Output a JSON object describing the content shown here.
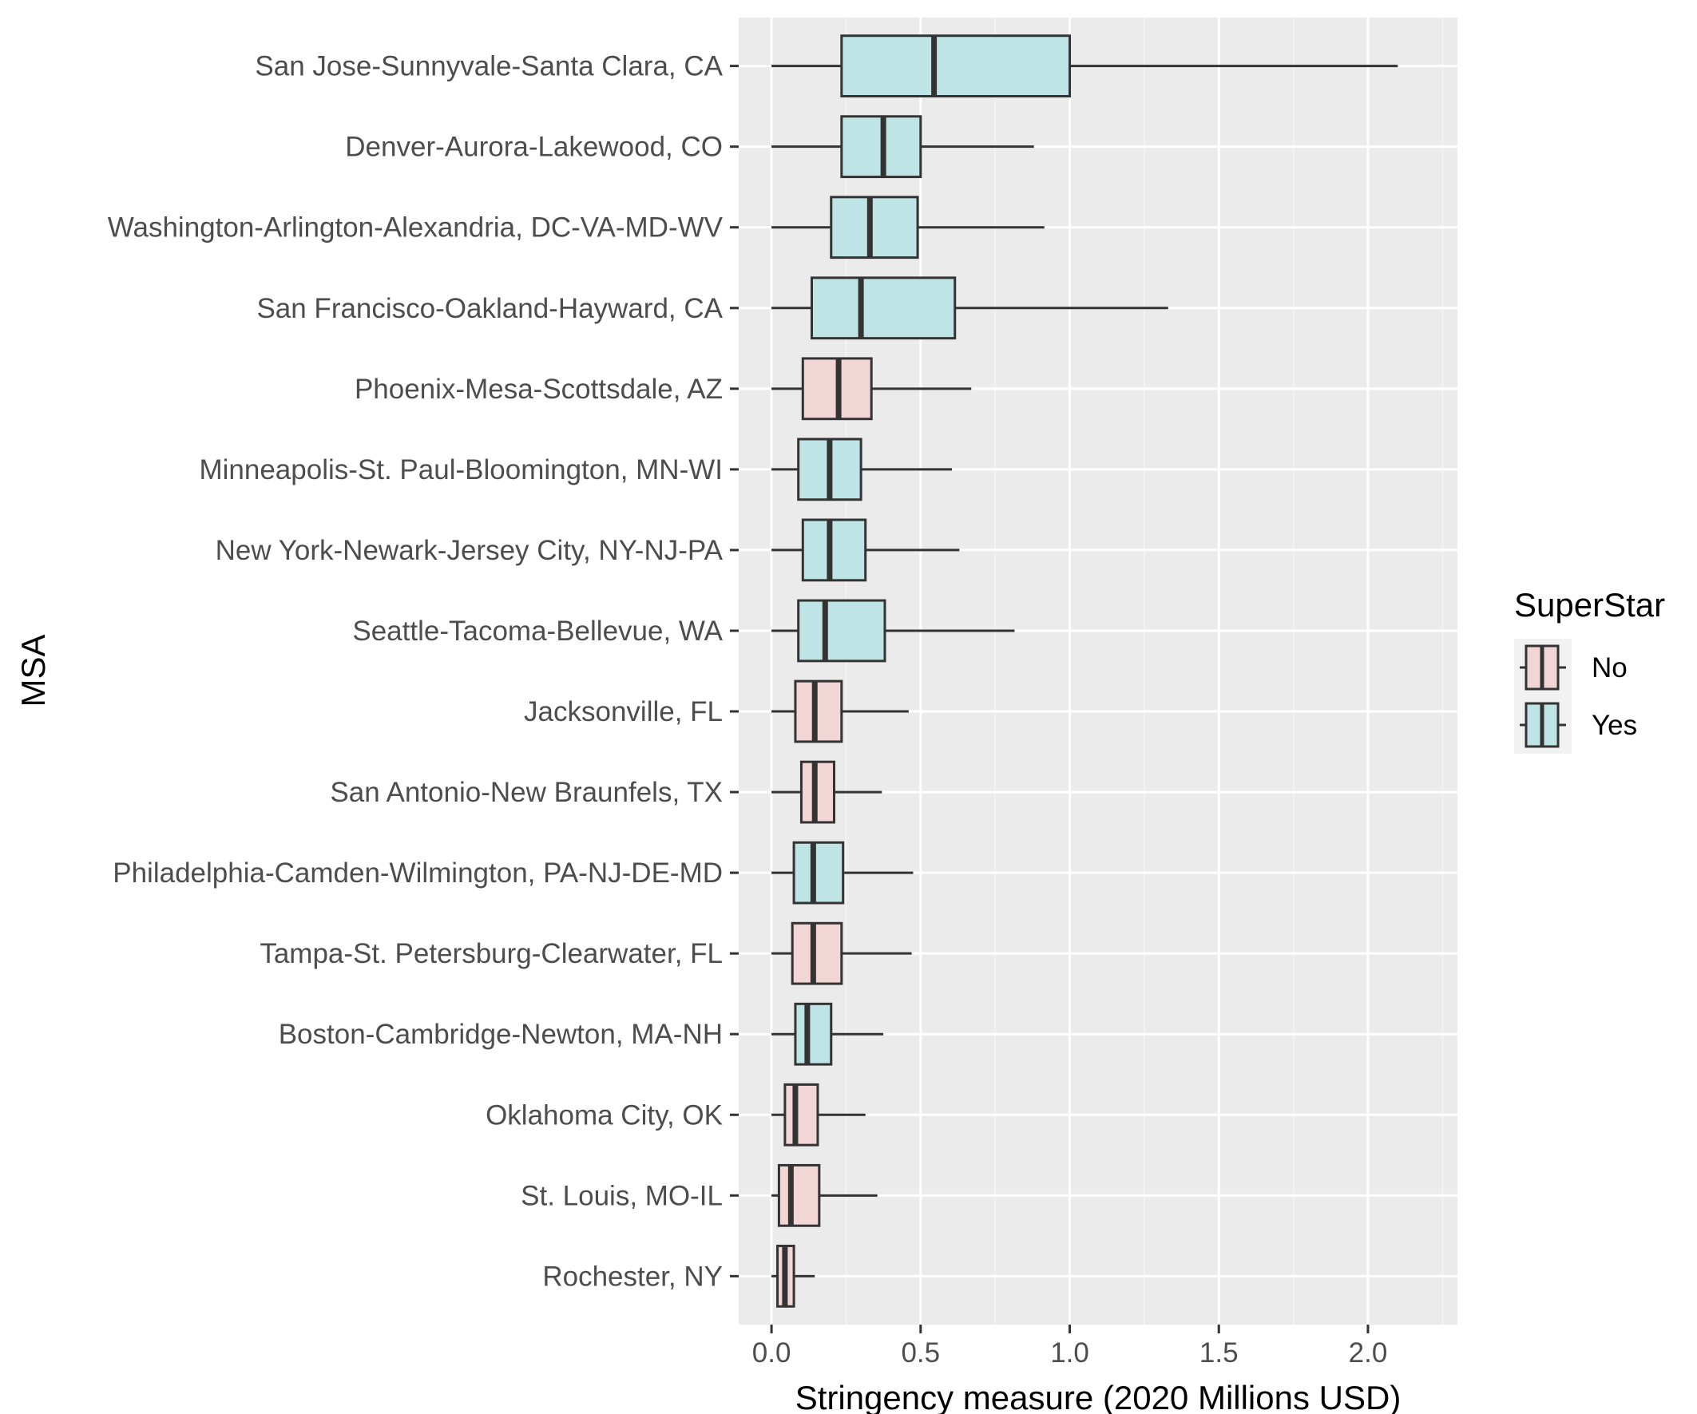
{
  "chart_data": {
    "type": "boxplot",
    "orientation": "horizontal",
    "xlabel": "Stringency measure (2020 Millions USD)",
    "ylabel": "MSA",
    "xlim": [
      -0.11,
      2.3
    ],
    "x_ticks": [
      0.0,
      0.5,
      1.0,
      1.5,
      2.0
    ],
    "x_tick_labels": [
      "0.0",
      "0.5",
      "1.0",
      "1.5",
      "2.0"
    ],
    "grid": true,
    "legend": {
      "title": "SuperStar",
      "placement": "right",
      "entries": [
        {
          "label": "No",
          "color": "#F8766D"
        },
        {
          "label": "Yes",
          "color": "#00BFC4"
        }
      ]
    },
    "categories": [
      {
        "label": "San Jose-Sunnyvale-Santa Clara, CA",
        "superstar": "Yes",
        "min": 0.0,
        "q1": 0.235,
        "median": 0.545,
        "q3": 1.0,
        "max": 2.1
      },
      {
        "label": "Denver-Aurora-Lakewood, CO",
        "superstar": "Yes",
        "min": 0.0,
        "q1": 0.235,
        "median": 0.375,
        "q3": 0.5,
        "max": 0.88
      },
      {
        "label": "Washington-Arlington-Alexandria, DC-VA-MD-WV",
        "superstar": "Yes",
        "min": 0.0,
        "q1": 0.2,
        "median": 0.33,
        "q3": 0.49,
        "max": 0.915
      },
      {
        "label": "San Francisco-Oakland-Hayward, CA",
        "superstar": "Yes",
        "min": 0.0,
        "q1": 0.135,
        "median": 0.3,
        "q3": 0.615,
        "max": 1.33
      },
      {
        "label": "Phoenix-Mesa-Scottsdale, AZ",
        "superstar": "No",
        "min": 0.0,
        "q1": 0.105,
        "median": 0.225,
        "q3": 0.335,
        "max": 0.67
      },
      {
        "label": "Minneapolis-St. Paul-Bloomington, MN-WI",
        "superstar": "Yes",
        "min": 0.0,
        "q1": 0.09,
        "median": 0.195,
        "q3": 0.3,
        "max": 0.605
      },
      {
        "label": "New York-Newark-Jersey City, NY-NJ-PA",
        "superstar": "Yes",
        "min": 0.0,
        "q1": 0.105,
        "median": 0.195,
        "q3": 0.315,
        "max": 0.63
      },
      {
        "label": "Seattle-Tacoma-Bellevue, WA",
        "superstar": "Yes",
        "min": 0.0,
        "q1": 0.09,
        "median": 0.18,
        "q3": 0.38,
        "max": 0.815
      },
      {
        "label": "Jacksonville, FL",
        "superstar": "No",
        "min": 0.0,
        "q1": 0.08,
        "median": 0.145,
        "q3": 0.235,
        "max": 0.46
      },
      {
        "label": "San Antonio-New Braunfels, TX",
        "superstar": "No",
        "min": 0.0,
        "q1": 0.1,
        "median": 0.145,
        "q3": 0.21,
        "max": 0.37
      },
      {
        "label": "Philadelphia-Camden-Wilmington, PA-NJ-DE-MD",
        "superstar": "Yes",
        "min": 0.0,
        "q1": 0.075,
        "median": 0.14,
        "q3": 0.24,
        "max": 0.475
      },
      {
        "label": "Tampa-St. Petersburg-Clearwater, FL",
        "superstar": "No",
        "min": 0.0,
        "q1": 0.07,
        "median": 0.14,
        "q3": 0.235,
        "max": 0.47
      },
      {
        "label": "Boston-Cambridge-Newton, MA-NH",
        "superstar": "Yes",
        "min": 0.0,
        "q1": 0.08,
        "median": 0.12,
        "q3": 0.2,
        "max": 0.375
      },
      {
        "label": "Oklahoma City, OK",
        "superstar": "No",
        "min": 0.0,
        "q1": 0.045,
        "median": 0.08,
        "q3": 0.155,
        "max": 0.315
      },
      {
        "label": "St. Louis, MO-IL",
        "superstar": "No",
        "min": 0.0,
        "q1": 0.025,
        "median": 0.065,
        "q3": 0.16,
        "max": 0.355
      },
      {
        "label": "Rochester, NY",
        "superstar": "No",
        "min": 0.0,
        "q1": 0.02,
        "median": 0.045,
        "q3": 0.075,
        "max": 0.145
      }
    ]
  }
}
